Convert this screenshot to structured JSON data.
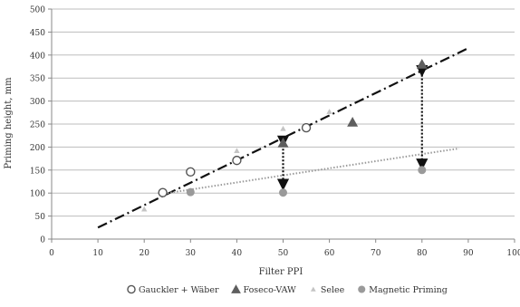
{
  "chart_data": {
    "type": "scatter",
    "xlabel": "Filter PPI",
    "ylabel": "Priming height, mm",
    "xlim": [
      0,
      100
    ],
    "ylim": [
      0,
      500
    ],
    "x_ticks": [
      0,
      10,
      20,
      30,
      40,
      50,
      60,
      70,
      80,
      90,
      100
    ],
    "y_ticks": [
      0,
      50,
      100,
      150,
      200,
      250,
      300,
      350,
      400,
      450,
      500
    ],
    "grid": "horizontal",
    "legend_position": "bottom",
    "series": [
      {
        "name": "Gauckler + Wäber",
        "marker": "circle-open",
        "color": "#555555",
        "points": [
          {
            "x": 24,
            "y": 101
          },
          {
            "x": 30,
            "y": 146
          },
          {
            "x": 40,
            "y": 171
          },
          {
            "x": 55,
            "y": 242
          }
        ]
      },
      {
        "name": "Foseco-VAW",
        "marker": "triangle",
        "color": "#5e5e5e",
        "points": [
          {
            "x": 50,
            "y": 209
          },
          {
            "x": 65,
            "y": 254
          },
          {
            "x": 80,
            "y": 380
          }
        ]
      },
      {
        "name": "Selee",
        "marker": "triangle-small",
        "color": "#c4c4c4",
        "points": [
          {
            "x": 20,
            "y": 65
          },
          {
            "x": 40,
            "y": 192
          },
          {
            "x": 50,
            "y": 240
          },
          {
            "x": 60,
            "y": 277
          }
        ]
      },
      {
        "name": "Magnetic Priming",
        "marker": "circle-filled",
        "color": "#9a9a9a",
        "points": [
          {
            "x": 30,
            "y": 102
          },
          {
            "x": 50,
            "y": 101
          },
          {
            "x": 80,
            "y": 150
          }
        ]
      }
    ],
    "trendlines": [
      {
        "style": "dash-dot",
        "color": "#111111",
        "from": {
          "x": 10,
          "y": 25
        },
        "to": {
          "x": 90,
          "y": 415
        }
      },
      {
        "style": "dotted",
        "color": "#9a9a9a",
        "from": {
          "x": 25,
          "y": 100
        },
        "to": {
          "x": 88,
          "y": 197
        }
      }
    ],
    "arrows": [
      {
        "x": 50,
        "y_top": 212,
        "y_bottom": 118,
        "style": "dotted-double-headed"
      },
      {
        "x": 80,
        "y_top": 365,
        "y_bottom": 162,
        "style": "dotted-double-headed"
      }
    ]
  }
}
